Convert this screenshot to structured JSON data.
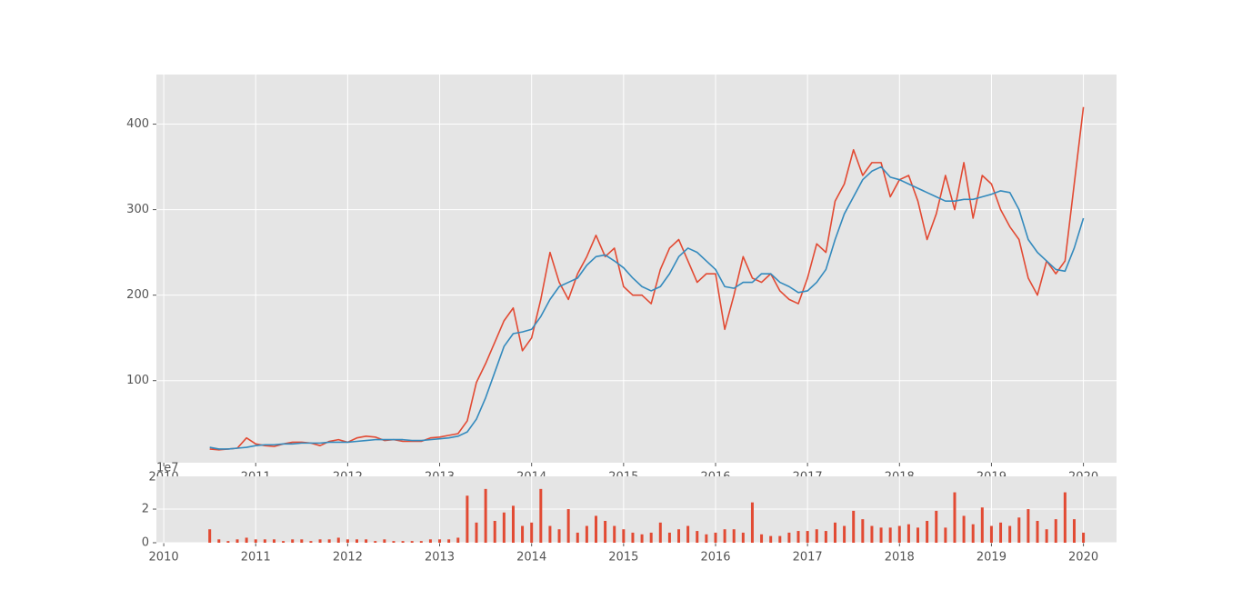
{
  "chart_data": [
    {
      "type": "line",
      "x": [
        2010.5,
        2010.6,
        2010.7,
        2010.8,
        2010.9,
        2011.0,
        2011.1,
        2011.2,
        2011.3,
        2011.4,
        2011.5,
        2011.6,
        2011.7,
        2011.8,
        2011.9,
        2012.0,
        2012.1,
        2012.2,
        2012.3,
        2012.4,
        2012.5,
        2012.6,
        2012.7,
        2012.8,
        2012.9,
        2013.0,
        2013.1,
        2013.2,
        2013.3,
        2013.4,
        2013.5,
        2013.6,
        2013.7,
        2013.8,
        2013.9,
        2014.0,
        2014.1,
        2014.2,
        2014.3,
        2014.4,
        2014.5,
        2014.6,
        2014.7,
        2014.8,
        2014.9,
        2015.0,
        2015.1,
        2015.2,
        2015.3,
        2015.4,
        2015.5,
        2015.6,
        2015.7,
        2015.8,
        2015.9,
        2016.0,
        2016.1,
        2016.2,
        2016.3,
        2016.4,
        2016.5,
        2016.6,
        2016.7,
        2016.8,
        2016.9,
        2017.0,
        2017.1,
        2017.2,
        2017.3,
        2017.4,
        2017.5,
        2017.6,
        2017.7,
        2017.8,
        2017.9,
        2018.0,
        2018.1,
        2018.2,
        2018.3,
        2018.4,
        2018.5,
        2018.6,
        2018.7,
        2018.8,
        2018.9,
        2019.0,
        2019.1,
        2019.2,
        2019.3,
        2019.4,
        2019.5,
        2019.6,
        2019.7,
        2019.8,
        2019.9,
        2020.0
      ],
      "series": [
        {
          "color": "#e24a33",
          "values": [
            20,
            19,
            20,
            21,
            33,
            26,
            24,
            23,
            26,
            28,
            28,
            27,
            24,
            29,
            31,
            28,
            33,
            35,
            34,
            30,
            31,
            29,
            29,
            29,
            33,
            34,
            36,
            38,
            53,
            98,
            120,
            145,
            170,
            185,
            135,
            150,
            195,
            250,
            215,
            195,
            225,
            245,
            270,
            245,
            255,
            210,
            200,
            200,
            190,
            230,
            255,
            265,
            240,
            215,
            225,
            225,
            160,
            200,
            245,
            220,
            215,
            225,
            205,
            195,
            190,
            220,
            260,
            250,
            310,
            330,
            370,
            340,
            355,
            355,
            315,
            335,
            340,
            310,
            265,
            295,
            340,
            300,
            355,
            290,
            340,
            330,
            300,
            280,
            265,
            220,
            200,
            240,
            225,
            240,
            330,
            420
          ]
        },
        {
          "color": "#348abd",
          "values": [
            22,
            20,
            20,
            21,
            22,
            24,
            25,
            25,
            26,
            26,
            27,
            27,
            27,
            28,
            28,
            28,
            29,
            30,
            31,
            31,
            31,
            31,
            30,
            30,
            31,
            32,
            33,
            35,
            40,
            55,
            80,
            110,
            140,
            155,
            157,
            160,
            175,
            195,
            210,
            215,
            220,
            235,
            245,
            247,
            240,
            232,
            220,
            210,
            205,
            210,
            225,
            245,
            255,
            250,
            240,
            230,
            210,
            208,
            215,
            215,
            225,
            225,
            215,
            210,
            203,
            205,
            215,
            230,
            265,
            295,
            315,
            335,
            345,
            350,
            338,
            335,
            330,
            325,
            320,
            315,
            310,
            310,
            312,
            312,
            315,
            318,
            322,
            320,
            300,
            265,
            250,
            240,
            230,
            228,
            255,
            290
          ]
        }
      ],
      "xlim": [
        2009.92,
        2020.36
      ],
      "xticks": [
        2010,
        2011,
        2012,
        2013,
        2014,
        2015,
        2016,
        2017,
        2018,
        2019,
        2020
      ],
      "ylim": [
        4,
        458
      ],
      "yticks": [
        100,
        200,
        300,
        400
      ],
      "grid": true
    },
    {
      "type": "bar",
      "x": [
        2010.5,
        2010.6,
        2010.7,
        2010.8,
        2010.9,
        2011.0,
        2011.1,
        2011.2,
        2011.3,
        2011.4,
        2011.5,
        2011.6,
        2011.7,
        2011.8,
        2011.9,
        2012.0,
        2012.1,
        2012.2,
        2012.3,
        2012.4,
        2012.5,
        2012.6,
        2012.7,
        2012.8,
        2012.9,
        2013.0,
        2013.1,
        2013.2,
        2013.3,
        2013.4,
        2013.5,
        2013.6,
        2013.7,
        2013.8,
        2013.9,
        2014.0,
        2014.1,
        2014.2,
        2014.3,
        2014.4,
        2014.5,
        2014.6,
        2014.7,
        2014.8,
        2014.9,
        2015.0,
        2015.1,
        2015.2,
        2015.3,
        2015.4,
        2015.5,
        2015.6,
        2015.7,
        2015.8,
        2015.9,
        2016.0,
        2016.1,
        2016.2,
        2016.3,
        2016.4,
        2016.5,
        2016.6,
        2016.7,
        2016.8,
        2016.9,
        2017.0,
        2017.1,
        2017.2,
        2017.3,
        2017.4,
        2017.5,
        2017.6,
        2017.7,
        2017.8,
        2017.9,
        2018.0,
        2018.1,
        2018.2,
        2018.3,
        2018.4,
        2018.5,
        2018.6,
        2018.7,
        2018.8,
        2018.9,
        2019.0,
        2019.1,
        2019.2,
        2019.3,
        2019.4,
        2019.5,
        2019.6,
        2019.7,
        2019.8,
        2019.9,
        2020.0
      ],
      "values": [
        0.8,
        0.2,
        0.1,
        0.2,
        0.3,
        0.2,
        0.2,
        0.2,
        0.1,
        0.2,
        0.2,
        0.1,
        0.2,
        0.2,
        0.3,
        0.2,
        0.2,
        0.2,
        0.1,
        0.2,
        0.1,
        0.1,
        0.1,
        0.1,
        0.2,
        0.2,
        0.2,
        0.3,
        2.8,
        1.2,
        3.2,
        1.3,
        1.8,
        2.2,
        1.0,
        1.2,
        3.2,
        1.0,
        0.8,
        2.0,
        0.6,
        1.0,
        1.6,
        1.3,
        1.0,
        0.8,
        0.6,
        0.5,
        0.6,
        1.2,
        0.6,
        0.8,
        1.0,
        0.7,
        0.5,
        0.6,
        0.8,
        0.8,
        0.6,
        2.4,
        0.5,
        0.4,
        0.4,
        0.6,
        0.7,
        0.7,
        0.8,
        0.7,
        1.2,
        1.0,
        1.9,
        1.4,
        1.0,
        0.9,
        0.9,
        1.0,
        1.1,
        0.9,
        1.3,
        1.9,
        0.9,
        3.0,
        1.6,
        1.1,
        2.1,
        1.0,
        1.2,
        1.0,
        1.5,
        2.0,
        1.3,
        0.8,
        1.4,
        3.0,
        1.4,
        0.6
      ],
      "color": "#e24a33",
      "offset_label": "1e7",
      "xlim": [
        2009.92,
        2020.36
      ],
      "xticks": [
        2010,
        2011,
        2012,
        2013,
        2014,
        2015,
        2016,
        2017,
        2018,
        2019,
        2020
      ],
      "ylim": [
        0,
        3.95
      ],
      "yticks": [
        0,
        2
      ],
      "grid": true
    }
  ]
}
